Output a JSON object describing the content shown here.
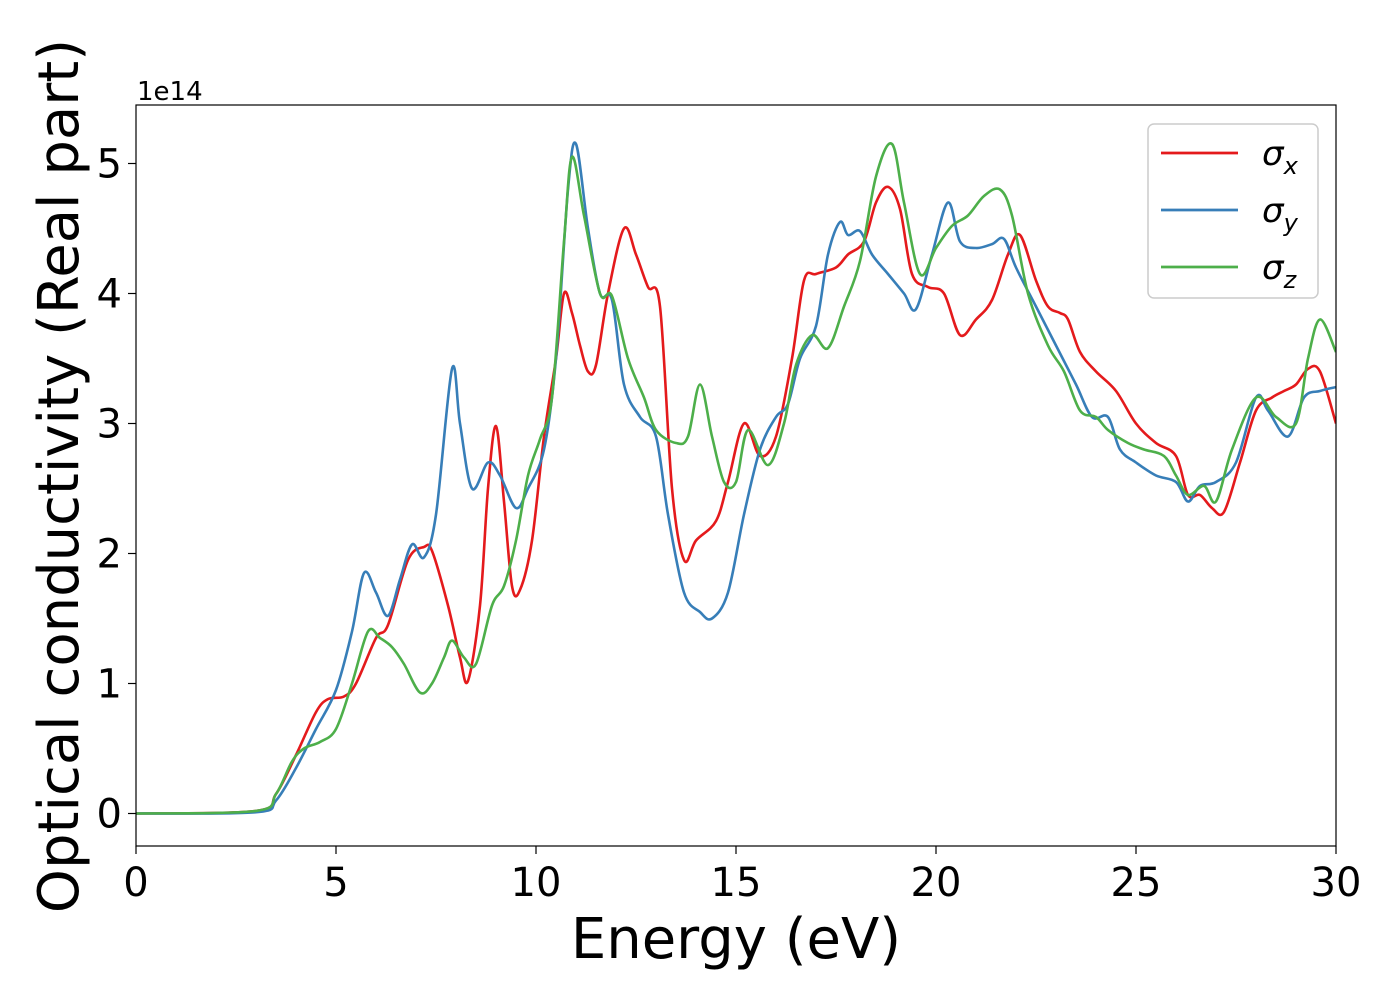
{
  "chart_data": {
    "type": "line",
    "xlabel": "Energy (eV)",
    "ylabel": "Optical conductivity (Real part)",
    "y_offset_label": "1e14",
    "xlim": [
      0,
      30
    ],
    "ylim": [
      -0.25,
      5.45
    ],
    "y_scale": 100000000000000.0,
    "x_ticks": [
      0,
      5,
      10,
      15,
      20,
      25,
      30
    ],
    "y_ticks": [
      0,
      1,
      2,
      3,
      4,
      5
    ],
    "grid": false,
    "legend_position": "top-right",
    "series": [
      {
        "name": "σ",
        "subscript": "x",
        "color": "#e41a1c",
        "points": [
          [
            0,
            0
          ],
          [
            3,
            0.02
          ],
          [
            3.5,
            0.15
          ],
          [
            4,
            0.45
          ],
          [
            4.5,
            0.78
          ],
          [
            4.8,
            0.88
          ],
          [
            5.2,
            0.9
          ],
          [
            5.5,
            1.0
          ],
          [
            6,
            1.35
          ],
          [
            6.3,
            1.45
          ],
          [
            6.8,
            1.95
          ],
          [
            7.2,
            2.05
          ],
          [
            7.4,
            2.02
          ],
          [
            7.8,
            1.6
          ],
          [
            8.1,
            1.2
          ],
          [
            8.3,
            1.02
          ],
          [
            8.6,
            1.6
          ],
          [
            8.8,
            2.5
          ],
          [
            9.0,
            2.98
          ],
          [
            9.2,
            2.4
          ],
          [
            9.4,
            1.75
          ],
          [
            9.6,
            1.72
          ],
          [
            9.9,
            2.1
          ],
          [
            10.2,
            2.9
          ],
          [
            10.5,
            3.5
          ],
          [
            10.7,
            4.0
          ],
          [
            10.9,
            3.85
          ],
          [
            11.1,
            3.6
          ],
          [
            11.3,
            3.4
          ],
          [
            11.5,
            3.45
          ],
          [
            11.8,
            4.0
          ],
          [
            12.2,
            4.5
          ],
          [
            12.5,
            4.3
          ],
          [
            12.8,
            4.05
          ],
          [
            13.1,
            3.9
          ],
          [
            13.4,
            2.5
          ],
          [
            13.7,
            1.95
          ],
          [
            14.0,
            2.1
          ],
          [
            14.5,
            2.25
          ],
          [
            14.8,
            2.55
          ],
          [
            15.2,
            3.0
          ],
          [
            15.6,
            2.75
          ],
          [
            16.0,
            2.9
          ],
          [
            16.4,
            3.5
          ],
          [
            16.7,
            4.1
          ],
          [
            17.0,
            4.15
          ],
          [
            17.5,
            4.2
          ],
          [
            17.8,
            4.3
          ],
          [
            18.2,
            4.4
          ],
          [
            18.5,
            4.7
          ],
          [
            18.8,
            4.82
          ],
          [
            19.1,
            4.65
          ],
          [
            19.4,
            4.15
          ],
          [
            19.8,
            4.05
          ],
          [
            20.2,
            4.0
          ],
          [
            20.6,
            3.68
          ],
          [
            21.0,
            3.8
          ],
          [
            21.4,
            3.95
          ],
          [
            21.8,
            4.3
          ],
          [
            22.1,
            4.45
          ],
          [
            22.5,
            4.1
          ],
          [
            22.8,
            3.9
          ],
          [
            23.1,
            3.85
          ],
          [
            23.3,
            3.8
          ],
          [
            23.6,
            3.55
          ],
          [
            24.0,
            3.4
          ],
          [
            24.5,
            3.25
          ],
          [
            25.0,
            3.0
          ],
          [
            25.5,
            2.85
          ],
          [
            26.0,
            2.75
          ],
          [
            26.3,
            2.45
          ],
          [
            26.6,
            2.45
          ],
          [
            26.9,
            2.35
          ],
          [
            27.2,
            2.32
          ],
          [
            27.6,
            2.7
          ],
          [
            28.0,
            3.1
          ],
          [
            28.4,
            3.2
          ],
          [
            28.7,
            3.25
          ],
          [
            29.0,
            3.3
          ],
          [
            29.3,
            3.42
          ],
          [
            29.6,
            3.4
          ],
          [
            30,
            3.0
          ]
        ]
      },
      {
        "name": "σ",
        "subscript": "y",
        "color": "#377eb8",
        "points": [
          [
            0,
            0
          ],
          [
            3,
            0.01
          ],
          [
            3.5,
            0.1
          ],
          [
            4,
            0.35
          ],
          [
            4.5,
            0.65
          ],
          [
            5,
            0.95
          ],
          [
            5.4,
            1.4
          ],
          [
            5.7,
            1.85
          ],
          [
            6.0,
            1.7
          ],
          [
            6.3,
            1.52
          ],
          [
            6.6,
            1.8
          ],
          [
            6.9,
            2.07
          ],
          [
            7.2,
            1.97
          ],
          [
            7.5,
            2.3
          ],
          [
            7.9,
            3.42
          ],
          [
            8.1,
            3.0
          ],
          [
            8.4,
            2.5
          ],
          [
            8.8,
            2.7
          ],
          [
            9.1,
            2.6
          ],
          [
            9.5,
            2.35
          ],
          [
            9.8,
            2.5
          ],
          [
            10.2,
            2.8
          ],
          [
            10.5,
            3.5
          ],
          [
            10.8,
            4.8
          ],
          [
            11.0,
            5.15
          ],
          [
            11.3,
            4.5
          ],
          [
            11.6,
            4.0
          ],
          [
            11.9,
            3.95
          ],
          [
            12.2,
            3.3
          ],
          [
            12.6,
            3.05
          ],
          [
            13.0,
            2.9
          ],
          [
            13.3,
            2.3
          ],
          [
            13.7,
            1.7
          ],
          [
            14.1,
            1.55
          ],
          [
            14.4,
            1.5
          ],
          [
            14.8,
            1.7
          ],
          [
            15.2,
            2.3
          ],
          [
            15.6,
            2.8
          ],
          [
            16.0,
            3.05
          ],
          [
            16.3,
            3.15
          ],
          [
            16.6,
            3.5
          ],
          [
            17.0,
            3.75
          ],
          [
            17.3,
            4.3
          ],
          [
            17.6,
            4.55
          ],
          [
            17.8,
            4.45
          ],
          [
            18.1,
            4.48
          ],
          [
            18.4,
            4.3
          ],
          [
            18.8,
            4.15
          ],
          [
            19.2,
            4.0
          ],
          [
            19.5,
            3.88
          ],
          [
            19.9,
            4.3
          ],
          [
            20.3,
            4.7
          ],
          [
            20.6,
            4.4
          ],
          [
            21.0,
            4.35
          ],
          [
            21.4,
            4.38
          ],
          [
            21.7,
            4.42
          ],
          [
            22.0,
            4.2
          ],
          [
            22.5,
            3.9
          ],
          [
            23.0,
            3.6
          ],
          [
            23.5,
            3.3
          ],
          [
            23.9,
            3.05
          ],
          [
            24.3,
            3.05
          ],
          [
            24.6,
            2.8
          ],
          [
            25.0,
            2.7
          ],
          [
            25.5,
            2.6
          ],
          [
            26.0,
            2.55
          ],
          [
            26.3,
            2.4
          ],
          [
            26.6,
            2.52
          ],
          [
            27.0,
            2.55
          ],
          [
            27.5,
            2.7
          ],
          [
            28.0,
            3.2
          ],
          [
            28.3,
            3.1
          ],
          [
            28.8,
            2.9
          ],
          [
            29.2,
            3.2
          ],
          [
            29.6,
            3.25
          ],
          [
            30,
            3.28
          ]
        ]
      },
      {
        "name": "σ",
        "subscript": "z",
        "color": "#4daf4a",
        "points": [
          [
            0,
            0
          ],
          [
            3,
            0.02
          ],
          [
            3.5,
            0.15
          ],
          [
            3.9,
            0.4
          ],
          [
            4.2,
            0.5
          ],
          [
            4.6,
            0.55
          ],
          [
            5.0,
            0.65
          ],
          [
            5.4,
            1.0
          ],
          [
            5.8,
            1.4
          ],
          [
            6.1,
            1.35
          ],
          [
            6.4,
            1.28
          ],
          [
            6.7,
            1.15
          ],
          [
            7.1,
            0.93
          ],
          [
            7.4,
            1.0
          ],
          [
            7.7,
            1.2
          ],
          [
            7.9,
            1.33
          ],
          [
            8.2,
            1.2
          ],
          [
            8.5,
            1.15
          ],
          [
            8.9,
            1.6
          ],
          [
            9.2,
            1.75
          ],
          [
            9.5,
            2.1
          ],
          [
            9.8,
            2.6
          ],
          [
            10.1,
            2.88
          ],
          [
            10.4,
            3.2
          ],
          [
            10.7,
            4.4
          ],
          [
            10.9,
            5.05
          ],
          [
            11.2,
            4.6
          ],
          [
            11.6,
            4.0
          ],
          [
            11.9,
            3.98
          ],
          [
            12.3,
            3.5
          ],
          [
            12.7,
            3.2
          ],
          [
            13.0,
            2.95
          ],
          [
            13.5,
            2.85
          ],
          [
            13.8,
            2.9
          ],
          [
            14.1,
            3.3
          ],
          [
            14.4,
            2.9
          ],
          [
            14.7,
            2.55
          ],
          [
            15.0,
            2.55
          ],
          [
            15.3,
            2.95
          ],
          [
            15.8,
            2.68
          ],
          [
            16.2,
            3.0
          ],
          [
            16.5,
            3.45
          ],
          [
            16.9,
            3.68
          ],
          [
            17.3,
            3.58
          ],
          [
            17.7,
            3.9
          ],
          [
            18.1,
            4.25
          ],
          [
            18.5,
            4.9
          ],
          [
            18.9,
            5.15
          ],
          [
            19.2,
            4.7
          ],
          [
            19.6,
            4.15
          ],
          [
            20.0,
            4.35
          ],
          [
            20.4,
            4.52
          ],
          [
            20.8,
            4.6
          ],
          [
            21.2,
            4.75
          ],
          [
            21.6,
            4.8
          ],
          [
            21.9,
            4.6
          ],
          [
            22.3,
            4.0
          ],
          [
            22.8,
            3.6
          ],
          [
            23.2,
            3.4
          ],
          [
            23.6,
            3.1
          ],
          [
            24.0,
            3.05
          ],
          [
            24.3,
            2.95
          ],
          [
            24.8,
            2.85
          ],
          [
            25.2,
            2.8
          ],
          [
            25.7,
            2.75
          ],
          [
            26.0,
            2.6
          ],
          [
            26.3,
            2.45
          ],
          [
            26.7,
            2.52
          ],
          [
            27.0,
            2.4
          ],
          [
            27.4,
            2.8
          ],
          [
            28.0,
            3.2
          ],
          [
            28.5,
            3.05
          ],
          [
            29.0,
            3.0
          ],
          [
            29.3,
            3.5
          ],
          [
            29.6,
            3.8
          ],
          [
            30,
            3.55
          ]
        ]
      }
    ]
  }
}
